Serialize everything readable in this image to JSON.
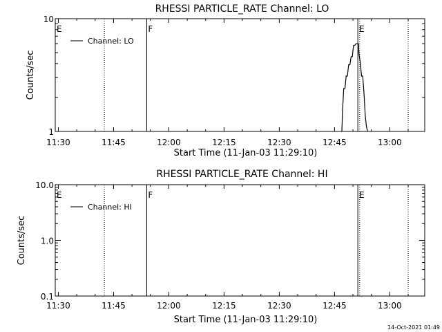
{
  "timestamp": "14-Oct-2021 01:49",
  "chart_data": [
    {
      "type": "line",
      "title": "RHESSI PARTICLE_RATE Channel: LO",
      "xlabel": "Start Time (11-Jan-03 11:29:10)",
      "ylabel": "Counts/sec",
      "x_ticks": [
        "11:30",
        "11:45",
        "12:00",
        "12:15",
        "12:30",
        "12:45",
        "13:00"
      ],
      "y_ticks": [
        "1",
        "10"
      ],
      "y_scale": "log",
      "ylim": [
        1,
        10
      ],
      "xlim": [
        "11:29:10",
        "13:09:30"
      ],
      "grid": false,
      "legend": {
        "position": "top-left",
        "entries": [
          "Channel: LO"
        ]
      },
      "markers": [
        {
          "label": "E",
          "time": "11:29:10",
          "style": "solid"
        },
        {
          "label": "",
          "time": "11:42:30",
          "style": "dotted"
        },
        {
          "label": "F",
          "time": "11:54:00",
          "style": "solid"
        },
        {
          "label": "E",
          "time": "12:51:20",
          "style": "solid"
        },
        {
          "label": "",
          "time": "12:51:50",
          "style": "dotted"
        },
        {
          "label": "",
          "time": "13:05:00",
          "style": "dotted"
        }
      ],
      "series": [
        {
          "name": "Channel: LO",
          "x": [
            "12:47:00",
            "12:47:10",
            "12:47:30",
            "12:47:50",
            "12:48:10",
            "12:48:30",
            "12:48:50",
            "12:49:10",
            "12:49:30",
            "12:49:50",
            "12:50:10",
            "12:50:30",
            "12:50:50",
            "12:51:10",
            "12:51:30",
            "12:51:40",
            "12:52:00",
            "12:52:20",
            "12:52:40",
            "12:53:00",
            "12:53:20",
            "12:53:40",
            "12:54:00"
          ],
          "values": [
            1,
            1.5,
            2.4,
            2.4,
            3.1,
            3.1,
            3.9,
            3.9,
            4.6,
            4.6,
            5.8,
            5.8,
            6.0,
            6.0,
            6.0,
            4.8,
            4.1,
            3.1,
            3.1,
            2.2,
            1.4,
            1.1,
            1
          ]
        }
      ]
    },
    {
      "type": "line",
      "title": "RHESSI PARTICLE_RATE Channel: HI",
      "xlabel": "Start Time (11-Jan-03 11:29:10)",
      "ylabel": "Counts/sec",
      "x_ticks": [
        "11:30",
        "11:45",
        "12:00",
        "12:15",
        "12:30",
        "12:45",
        "13:00"
      ],
      "y_ticks": [
        "0.1",
        "1.0",
        "10.0"
      ],
      "y_scale": "log",
      "ylim": [
        0.1,
        10
      ],
      "xlim": [
        "11:29:10",
        "13:09:30"
      ],
      "grid": false,
      "legend": {
        "position": "top-left",
        "entries": [
          "Channel: HI"
        ]
      },
      "markers": [
        {
          "label": "E",
          "time": "11:29:10",
          "style": "solid"
        },
        {
          "label": "",
          "time": "11:42:30",
          "style": "dotted"
        },
        {
          "label": "F",
          "time": "11:54:00",
          "style": "solid"
        },
        {
          "label": "E",
          "time": "12:51:20",
          "style": "solid"
        },
        {
          "label": "",
          "time": "12:51:50",
          "style": "dotted"
        },
        {
          "label": "",
          "time": "13:05:00",
          "style": "dotted"
        }
      ],
      "series": [
        {
          "name": "Channel: HI",
          "x": [],
          "values": []
        }
      ]
    }
  ]
}
